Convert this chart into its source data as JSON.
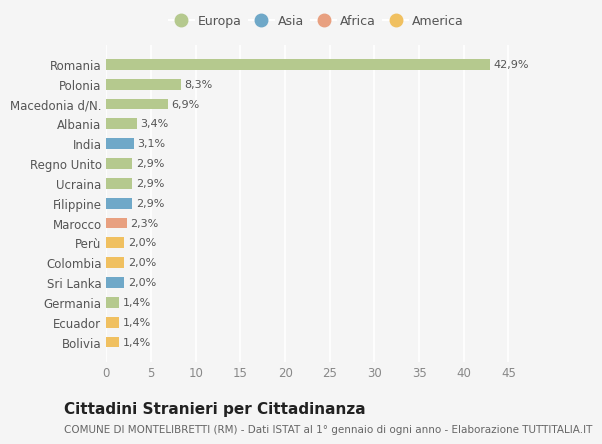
{
  "countries": [
    "Romania",
    "Polonia",
    "Macedonia d/N.",
    "Albania",
    "India",
    "Regno Unito",
    "Ucraina",
    "Filippine",
    "Marocco",
    "Perù",
    "Colombia",
    "Sri Lanka",
    "Germania",
    "Ecuador",
    "Bolivia"
  ],
  "values": [
    42.9,
    8.3,
    6.9,
    3.4,
    3.1,
    2.9,
    2.9,
    2.9,
    2.3,
    2.0,
    2.0,
    2.0,
    1.4,
    1.4,
    1.4
  ],
  "labels": [
    "42,9%",
    "8,3%",
    "6,9%",
    "3,4%",
    "3,1%",
    "2,9%",
    "2,9%",
    "2,9%",
    "2,3%",
    "2,0%",
    "2,0%",
    "2,0%",
    "1,4%",
    "1,4%",
    "1,4%"
  ],
  "continents": [
    "Europa",
    "Europa",
    "Europa",
    "Europa",
    "Asia",
    "Europa",
    "Europa",
    "Asia",
    "Africa",
    "America",
    "America",
    "Asia",
    "Europa",
    "America",
    "America"
  ],
  "continent_colors": {
    "Europa": "#b5c98e",
    "Asia": "#6fa8c8",
    "Africa": "#e8a080",
    "America": "#f0c060"
  },
  "legend_items": [
    {
      "label": "Europa",
      "color": "#b5c98e"
    },
    {
      "label": "Asia",
      "color": "#6fa8c8"
    },
    {
      "label": "Africa",
      "color": "#e8a080"
    },
    {
      "label": "America",
      "color": "#f0c060"
    }
  ],
  "title": "Cittadini Stranieri per Cittadinanza",
  "subtitle": "COMUNE DI MONTELIBRETTI (RM) - Dati ISTAT al 1° gennaio di ogni anno - Elaborazione TUTTITALIA.IT",
  "xlim": [
    0,
    47
  ],
  "xticks": [
    0,
    5,
    10,
    15,
    20,
    25,
    30,
    35,
    40,
    45
  ],
  "bg_color": "#f5f5f5",
  "grid_color": "#ffffff",
  "bar_height": 0.55,
  "label_fontsize": 8,
  "title_fontsize": 11,
  "subtitle_fontsize": 7.5,
  "tick_fontsize": 8.5,
  "legend_fontsize": 9
}
